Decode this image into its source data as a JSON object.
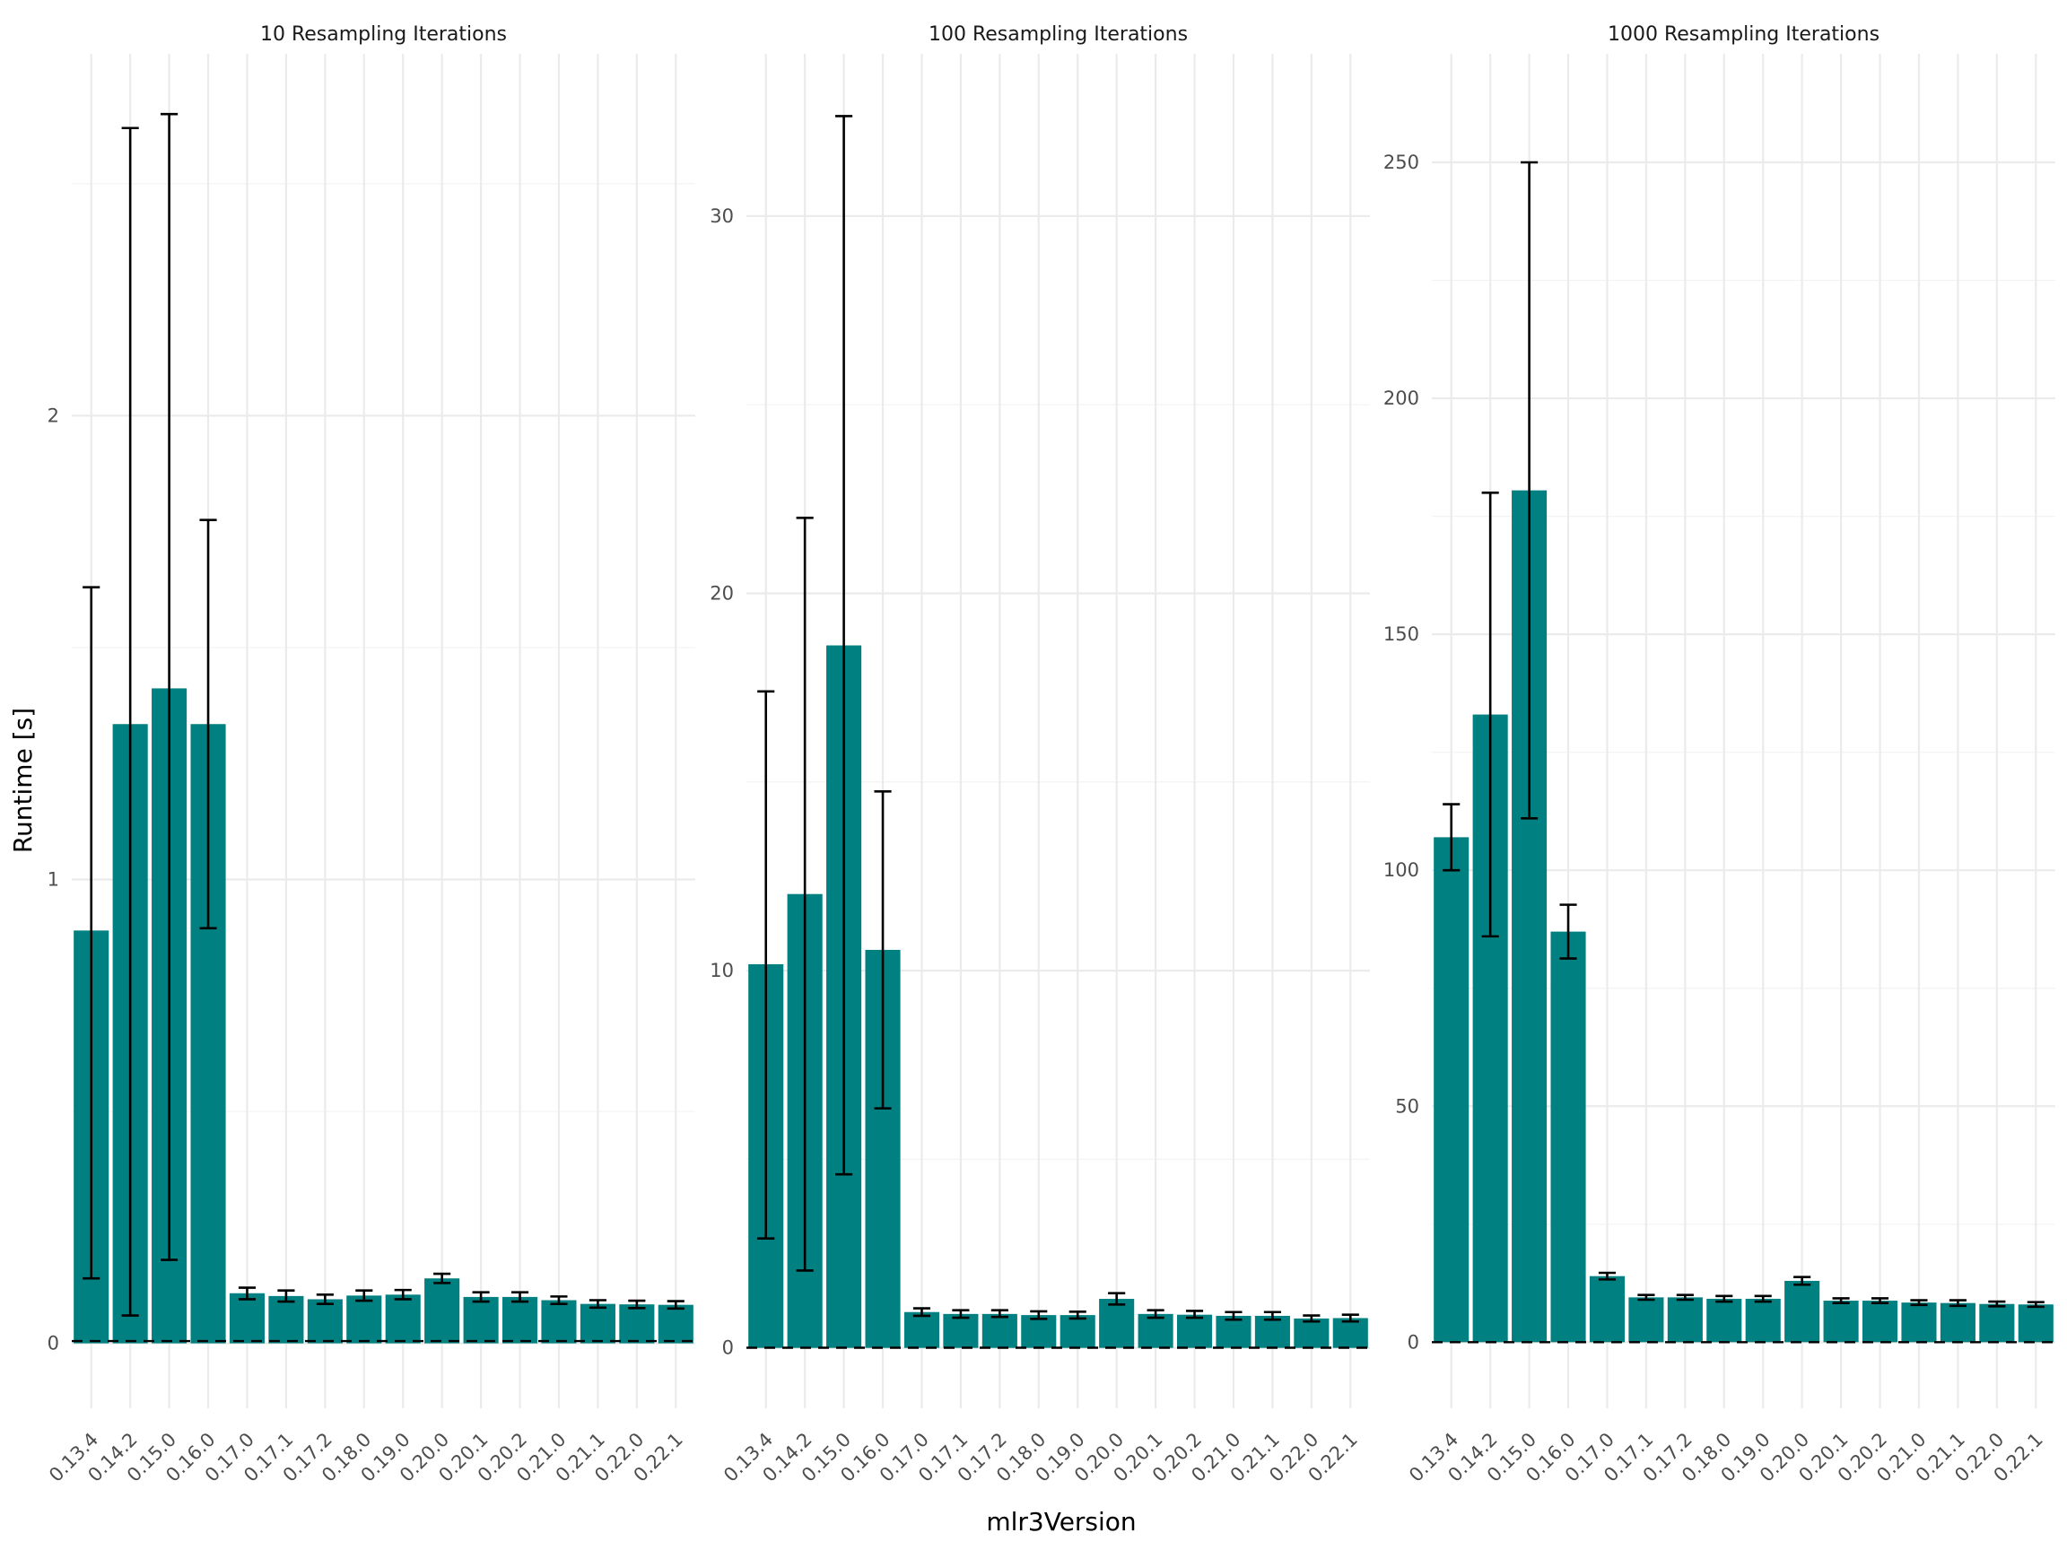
{
  "chart_data": {
    "type": "bar",
    "xlabel": "mlr3Version",
    "ylabel": "Runtime [s]",
    "categories": [
      "0.13.4",
      "0.14.2",
      "0.15.0",
      "0.16.0",
      "0.17.0",
      "0.17.1",
      "0.17.2",
      "0.18.0",
      "0.19.0",
      "0.20.0",
      "0.20.1",
      "0.20.2",
      "0.21.0",
      "0.21.1",
      "0.22.0",
      "0.22.1"
    ],
    "colors": {
      "bar": "#008080",
      "error_bar": "#000000",
      "reference_line": "#000000"
    },
    "reference_line": {
      "y": 0.005,
      "style": "dashed"
    },
    "facets": [
      {
        "title": "10 Resampling Iterations",
        "ylim": [
          -0.14,
          2.78
        ],
        "yticks": [
          0,
          1,
          2
        ],
        "values": [
          0.89,
          1.335,
          1.412,
          1.335,
          0.108,
          0.102,
          0.095,
          0.103,
          0.105,
          0.14,
          0.1,
          0.1,
          0.093,
          0.085,
          0.084,
          0.083
        ],
        "err_low": [
          0.14,
          0.06,
          0.18,
          0.895,
          0.095,
          0.09,
          0.085,
          0.092,
          0.095,
          0.13,
          0.09,
          0.09,
          0.085,
          0.077,
          0.076,
          0.075
        ],
        "err_high": [
          1.63,
          2.62,
          2.65,
          1.775,
          0.12,
          0.114,
          0.105,
          0.114,
          0.115,
          0.15,
          0.11,
          0.11,
          0.101,
          0.093,
          0.092,
          0.091
        ]
      },
      {
        "title": "100 Resampling Iterations",
        "ylim": [
          -1.6,
          34.3
        ],
        "yticks": [
          0,
          10,
          20,
          30
        ],
        "values": [
          10.17,
          12.03,
          18.62,
          10.55,
          0.95,
          0.9,
          0.9,
          0.87,
          0.87,
          1.3,
          0.9,
          0.88,
          0.85,
          0.85,
          0.78,
          0.79
        ],
        "err_low": [
          2.9,
          2.05,
          4.6,
          6.35,
          0.85,
          0.8,
          0.82,
          0.77,
          0.78,
          1.15,
          0.8,
          0.8,
          0.75,
          0.75,
          0.7,
          0.7
        ],
        "err_high": [
          17.4,
          22.0,
          32.65,
          14.75,
          1.05,
          1.0,
          1.0,
          0.97,
          0.96,
          1.45,
          1.0,
          0.98,
          0.95,
          0.95,
          0.86,
          0.88
        ]
      },
      {
        "title": "1000 Resampling Iterations",
        "ylim": [
          -14,
          273
        ],
        "yticks": [
          0,
          50,
          100,
          150,
          200,
          250
        ],
        "values": [
          107,
          133,
          180.5,
          87,
          14,
          9.5,
          9.5,
          9.2,
          9.2,
          13,
          8.8,
          8.8,
          8.4,
          8.3,
          8.1,
          8.0
        ],
        "err_low": [
          100,
          86,
          111,
          81.3,
          13.3,
          9,
          9,
          8.6,
          8.6,
          12.2,
          8.3,
          8.3,
          7.9,
          7.7,
          7.6,
          7.5
        ],
        "err_high": [
          114,
          180,
          250,
          92.7,
          14.7,
          10,
          10,
          9.8,
          9.8,
          13.8,
          9.3,
          9.3,
          8.9,
          8.9,
          8.6,
          8.5
        ]
      }
    ]
  }
}
